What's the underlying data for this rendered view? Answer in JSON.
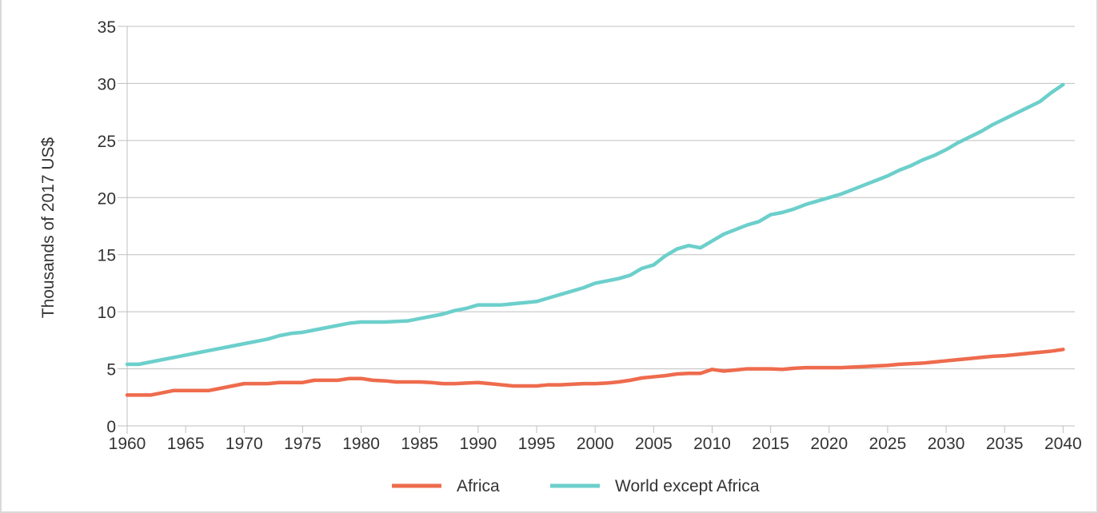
{
  "chart_data": {
    "type": "line",
    "title": "",
    "xlabel": "",
    "ylabel": "Thousands of 2017 US$",
    "xlim": [
      1960,
      2041
    ],
    "ylim": [
      0,
      35
    ],
    "x_ticks": [
      1960,
      1965,
      1970,
      1975,
      1980,
      1985,
      1990,
      1995,
      2000,
      2005,
      2010,
      2015,
      2020,
      2025,
      2030,
      2035,
      2040
    ],
    "y_ticks": [
      0,
      5,
      10,
      15,
      20,
      25,
      30,
      35
    ],
    "x_tick_labels": [
      "1960",
      "1965",
      "1970",
      "1975",
      "1980",
      "1985",
      "1990",
      "1995",
      "2000",
      "2005",
      "2010",
      "2015",
      "2020",
      "2025",
      "2030",
      "2035",
      "2040"
    ],
    "y_tick_labels": [
      "0",
      "5",
      "10",
      "15",
      "20",
      "25",
      "30",
      "35"
    ],
    "grid": "horizontal",
    "legend_position": "bottom",
    "series": [
      {
        "name": "Africa",
        "color": "#ee6b4d",
        "points": [
          [
            1960,
            2.7
          ],
          [
            1961,
            2.7
          ],
          [
            1962,
            2.7
          ],
          [
            1963,
            2.9
          ],
          [
            1964,
            3.1
          ],
          [
            1965,
            3.1
          ],
          [
            1966,
            3.1
          ],
          [
            1967,
            3.1
          ],
          [
            1968,
            3.3
          ],
          [
            1969,
            3.5
          ],
          [
            1970,
            3.7
          ],
          [
            1971,
            3.7
          ],
          [
            1972,
            3.7
          ],
          [
            1973,
            3.8
          ],
          [
            1974,
            3.8
          ],
          [
            1975,
            3.8
          ],
          [
            1976,
            4.0
          ],
          [
            1977,
            4.0
          ],
          [
            1978,
            4.0
          ],
          [
            1979,
            4.15
          ],
          [
            1980,
            4.15
          ],
          [
            1981,
            4.0
          ],
          [
            1982,
            3.95
          ],
          [
            1983,
            3.85
          ],
          [
            1984,
            3.85
          ],
          [
            1985,
            3.85
          ],
          [
            1986,
            3.8
          ],
          [
            1987,
            3.7
          ],
          [
            1988,
            3.7
          ],
          [
            1989,
            3.75
          ],
          [
            1990,
            3.8
          ],
          [
            1991,
            3.7
          ],
          [
            1992,
            3.6
          ],
          [
            1993,
            3.5
          ],
          [
            1994,
            3.5
          ],
          [
            1995,
            3.5
          ],
          [
            1996,
            3.6
          ],
          [
            1997,
            3.6
          ],
          [
            1998,
            3.65
          ],
          [
            1999,
            3.7
          ],
          [
            2000,
            3.7
          ],
          [
            2001,
            3.75
          ],
          [
            2002,
            3.85
          ],
          [
            2003,
            4.0
          ],
          [
            2004,
            4.2
          ],
          [
            2005,
            4.3
          ],
          [
            2006,
            4.4
          ],
          [
            2007,
            4.55
          ],
          [
            2008,
            4.6
          ],
          [
            2009,
            4.6
          ],
          [
            2010,
            4.95
          ],
          [
            2011,
            4.8
          ],
          [
            2012,
            4.9
          ],
          [
            2013,
            5.0
          ],
          [
            2014,
            5.0
          ],
          [
            2015,
            5.0
          ],
          [
            2016,
            4.95
          ],
          [
            2017,
            5.05
          ],
          [
            2018,
            5.1
          ],
          [
            2019,
            5.1
          ],
          [
            2020,
            5.1
          ],
          [
            2021,
            5.1
          ],
          [
            2022,
            5.15
          ],
          [
            2023,
            5.2
          ],
          [
            2024,
            5.25
          ],
          [
            2025,
            5.3
          ],
          [
            2026,
            5.4
          ],
          [
            2027,
            5.45
          ],
          [
            2028,
            5.5
          ],
          [
            2029,
            5.6
          ],
          [
            2030,
            5.7
          ],
          [
            2031,
            5.8
          ],
          [
            2032,
            5.9
          ],
          [
            2033,
            6.0
          ],
          [
            2034,
            6.1
          ],
          [
            2035,
            6.15
          ],
          [
            2036,
            6.25
          ],
          [
            2037,
            6.35
          ],
          [
            2038,
            6.45
          ],
          [
            2039,
            6.55
          ],
          [
            2040,
            6.7
          ]
        ]
      },
      {
        "name": "World except Africa",
        "color": "#6ccfcb",
        "points": [
          [
            1960,
            5.4
          ],
          [
            1961,
            5.4
          ],
          [
            1962,
            5.6
          ],
          [
            1963,
            5.8
          ],
          [
            1964,
            6.0
          ],
          [
            1965,
            6.2
          ],
          [
            1966,
            6.4
          ],
          [
            1967,
            6.6
          ],
          [
            1968,
            6.8
          ],
          [
            1969,
            7.0
          ],
          [
            1970,
            7.2
          ],
          [
            1971,
            7.4
          ],
          [
            1972,
            7.6
          ],
          [
            1973,
            7.9
          ],
          [
            1974,
            8.1
          ],
          [
            1975,
            8.2
          ],
          [
            1976,
            8.4
          ],
          [
            1977,
            8.6
          ],
          [
            1978,
            8.8
          ],
          [
            1979,
            9.0
          ],
          [
            1980,
            9.1
          ],
          [
            1981,
            9.1
          ],
          [
            1982,
            9.1
          ],
          [
            1983,
            9.15
          ],
          [
            1984,
            9.2
          ],
          [
            1985,
            9.4
          ],
          [
            1986,
            9.6
          ],
          [
            1987,
            9.8
          ],
          [
            1988,
            10.1
          ],
          [
            1989,
            10.3
          ],
          [
            1990,
            10.6
          ],
          [
            1991,
            10.6
          ],
          [
            1992,
            10.6
          ],
          [
            1993,
            10.7
          ],
          [
            1994,
            10.8
          ],
          [
            1995,
            10.9
          ],
          [
            1996,
            11.2
          ],
          [
            1997,
            11.5
          ],
          [
            1998,
            11.8
          ],
          [
            1999,
            12.1
          ],
          [
            2000,
            12.5
          ],
          [
            2001,
            12.7
          ],
          [
            2002,
            12.9
          ],
          [
            2003,
            13.2
          ],
          [
            2004,
            13.8
          ],
          [
            2005,
            14.1
          ],
          [
            2006,
            14.9
          ],
          [
            2007,
            15.5
          ],
          [
            2008,
            15.8
          ],
          [
            2009,
            15.6
          ],
          [
            2010,
            16.2
          ],
          [
            2011,
            16.8
          ],
          [
            2012,
            17.2
          ],
          [
            2013,
            17.6
          ],
          [
            2014,
            17.9
          ],
          [
            2015,
            18.5
          ],
          [
            2016,
            18.7
          ],
          [
            2017,
            19.0
          ],
          [
            2018,
            19.4
          ],
          [
            2019,
            19.7
          ],
          [
            2020,
            20.0
          ],
          [
            2021,
            20.3
          ],
          [
            2022,
            20.7
          ],
          [
            2023,
            21.1
          ],
          [
            2024,
            21.5
          ],
          [
            2025,
            21.9
          ],
          [
            2026,
            22.4
          ],
          [
            2027,
            22.8
          ],
          [
            2028,
            23.3
          ],
          [
            2029,
            23.7
          ],
          [
            2030,
            24.2
          ],
          [
            2031,
            24.8
          ],
          [
            2032,
            25.3
          ],
          [
            2033,
            25.8
          ],
          [
            2034,
            26.4
          ],
          [
            2035,
            26.9
          ],
          [
            2036,
            27.4
          ],
          [
            2037,
            27.9
          ],
          [
            2038,
            28.4
          ],
          [
            2039,
            29.2
          ],
          [
            2040,
            29.9
          ]
        ]
      }
    ]
  }
}
